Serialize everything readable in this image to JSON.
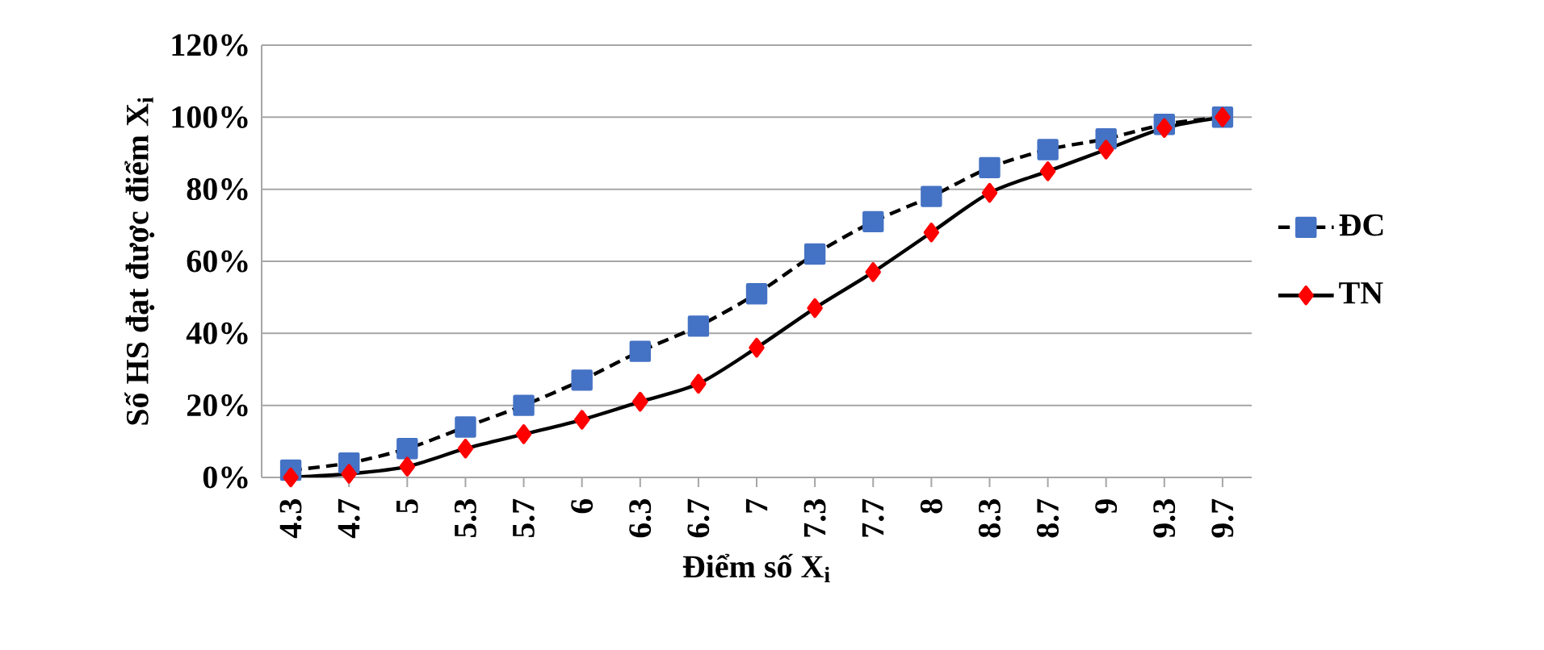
{
  "chart_data": {
    "type": "line",
    "xlabel": "Điểm số X$_{i}$",
    "ylabel": "Số HS đạt được điểm X$_{i}$",
    "categories": [
      "4.3",
      "4.7",
      "5",
      "5.3",
      "5.7",
      "6",
      "6.3",
      "6.7",
      "7",
      "7.3",
      "7.7",
      "8",
      "8.3",
      "8.7",
      "9",
      "9.3",
      "9.7"
    ],
    "series": [
      {
        "name": "ĐC",
        "color": "#4472c4",
        "marker": "square",
        "line_style": "dashed",
        "values": [
          2,
          4,
          8,
          14,
          20,
          27,
          35,
          42,
          51,
          62,
          71,
          78,
          86,
          91,
          94,
          98,
          100
        ]
      },
      {
        "name": "TN",
        "color": "#ff0000",
        "marker": "diamond",
        "line_style": "solid",
        "values": [
          0,
          1,
          3,
          8,
          12,
          16,
          21,
          26,
          36,
          47,
          57,
          68,
          79,
          85,
          91,
          97,
          100
        ]
      }
    ],
    "ylim": [
      0,
      120
    ],
    "yticks": [
      {
        "value": 0,
        "label": "0%"
      },
      {
        "value": 20,
        "label": "20%"
      },
      {
        "value": 40,
        "label": "40%"
      },
      {
        "value": 60,
        "label": "60%"
      },
      {
        "value": 80,
        "label": "80%"
      },
      {
        "value": 100,
        "label": "100%"
      },
      {
        "value": 120,
        "label": "120%"
      }
    ],
    "grid": "y",
    "legend": "right"
  }
}
